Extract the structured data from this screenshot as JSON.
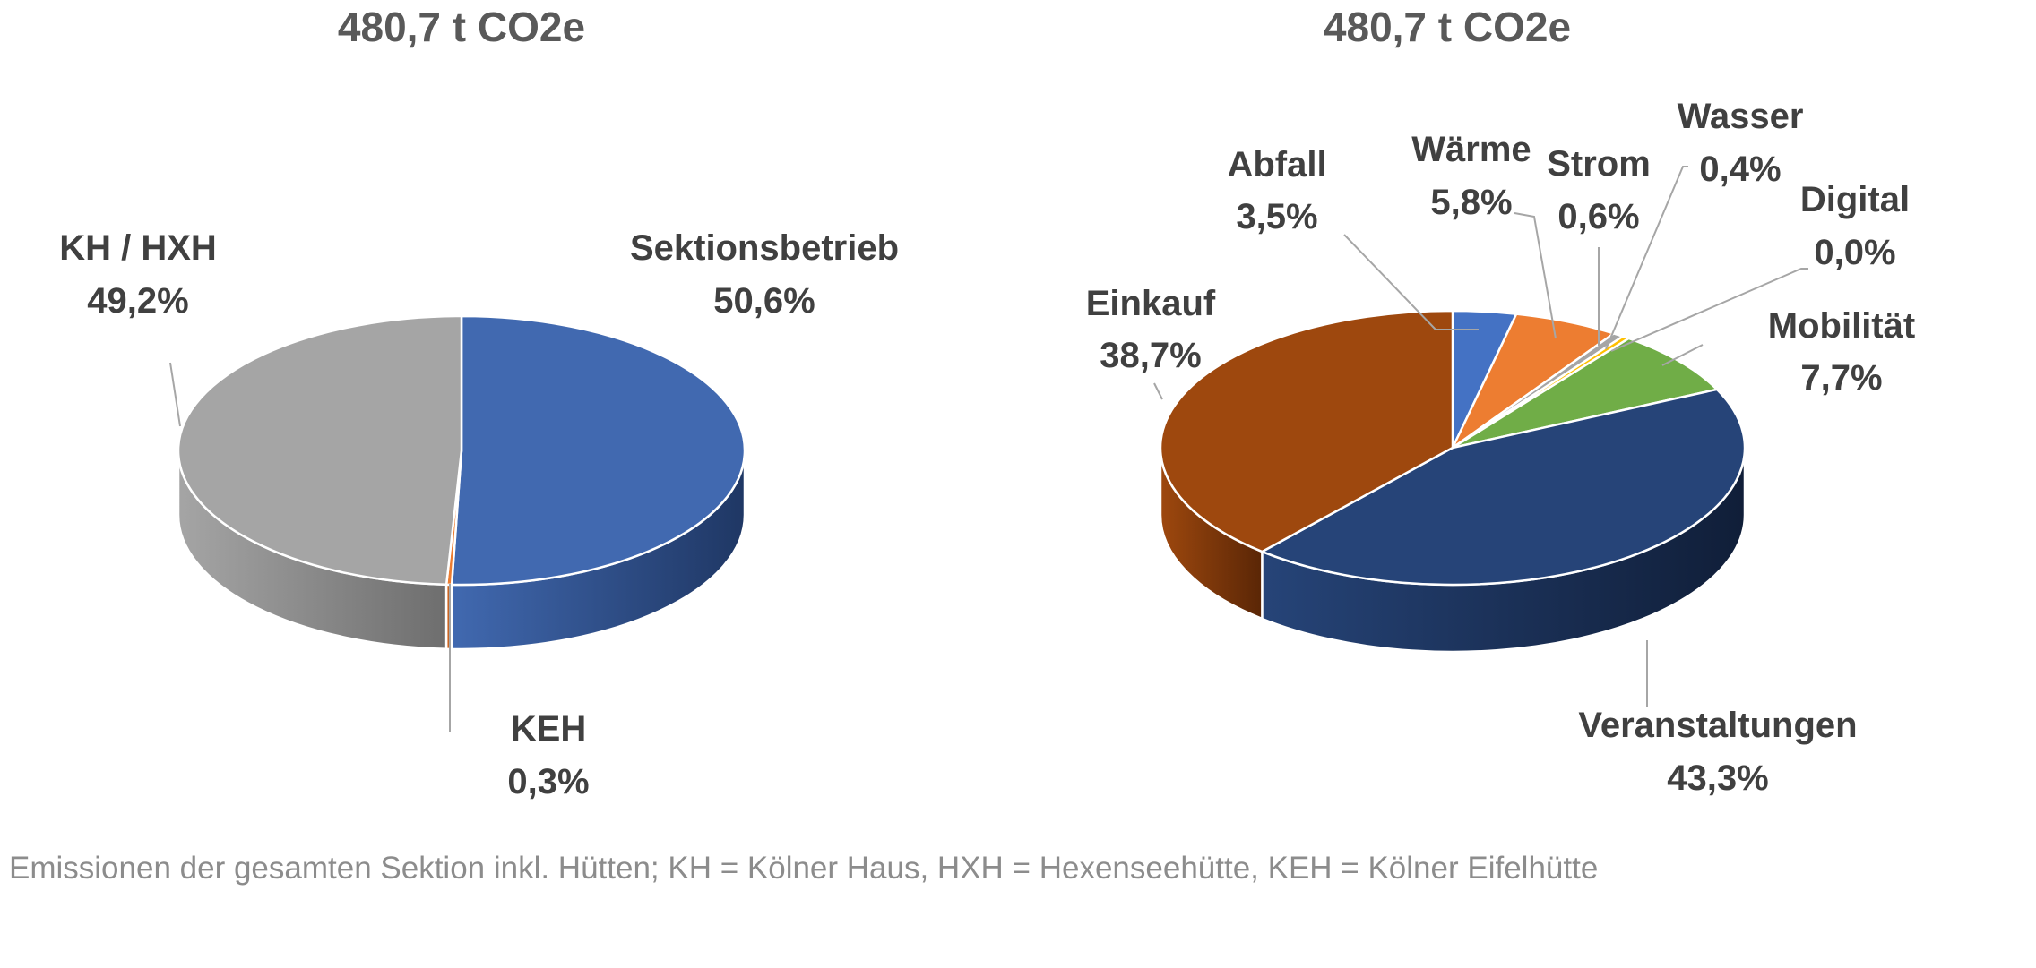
{
  "caption": "Emissionen der gesamten Sektion inkl. Hütten; KH = Kölner Haus, HXH = Hexenseehütte, KEH = Kölner Eifelhütte",
  "chart_data": [
    {
      "type": "pie",
      "title": "480,7 t CO2e",
      "categories": [
        "Sektionsbetrieb",
        "KEH",
        "KH / HXH"
      ],
      "values": [
        50.6,
        0.3,
        49.2
      ],
      "value_labels": [
        "50,6%",
        "0,3%",
        "49,2%"
      ],
      "colors": [
        "#4169b0",
        "#ed7d31",
        "#a5a5a5"
      ],
      "side_colors": [
        "#1f3764",
        "#8a3f0f",
        "#6e6e6e"
      ],
      "style": "3d"
    },
    {
      "type": "pie",
      "title": "480,7 t CO2e",
      "categories": [
        "Abfall",
        "Wärme",
        "Strom",
        "Wasser",
        "Digital",
        "Mobilität",
        "Veranstaltungen",
        "Einkauf"
      ],
      "values": [
        3.5,
        5.8,
        0.6,
        0.4,
        0.0,
        7.7,
        43.3,
        38.7
      ],
      "value_labels": [
        "3,5%",
        "5,8%",
        "0,6%",
        "0,4%",
        "0,0%",
        "7,7%",
        "43,3%",
        "38,7%"
      ],
      "colors": [
        "#4472c4",
        "#ed7d31",
        "#a5a5a5",
        "#ffc000",
        "#5b9bd5",
        "#70ad47",
        "#264478",
        "#9e480e"
      ],
      "side_colors": [
        "#223a66",
        "#8a3f0f",
        "#6e6e6e",
        "#997300",
        "#2e5a86",
        "#3d6b20",
        "#101e38",
        "#5a2606"
      ],
      "style": "3d"
    }
  ]
}
